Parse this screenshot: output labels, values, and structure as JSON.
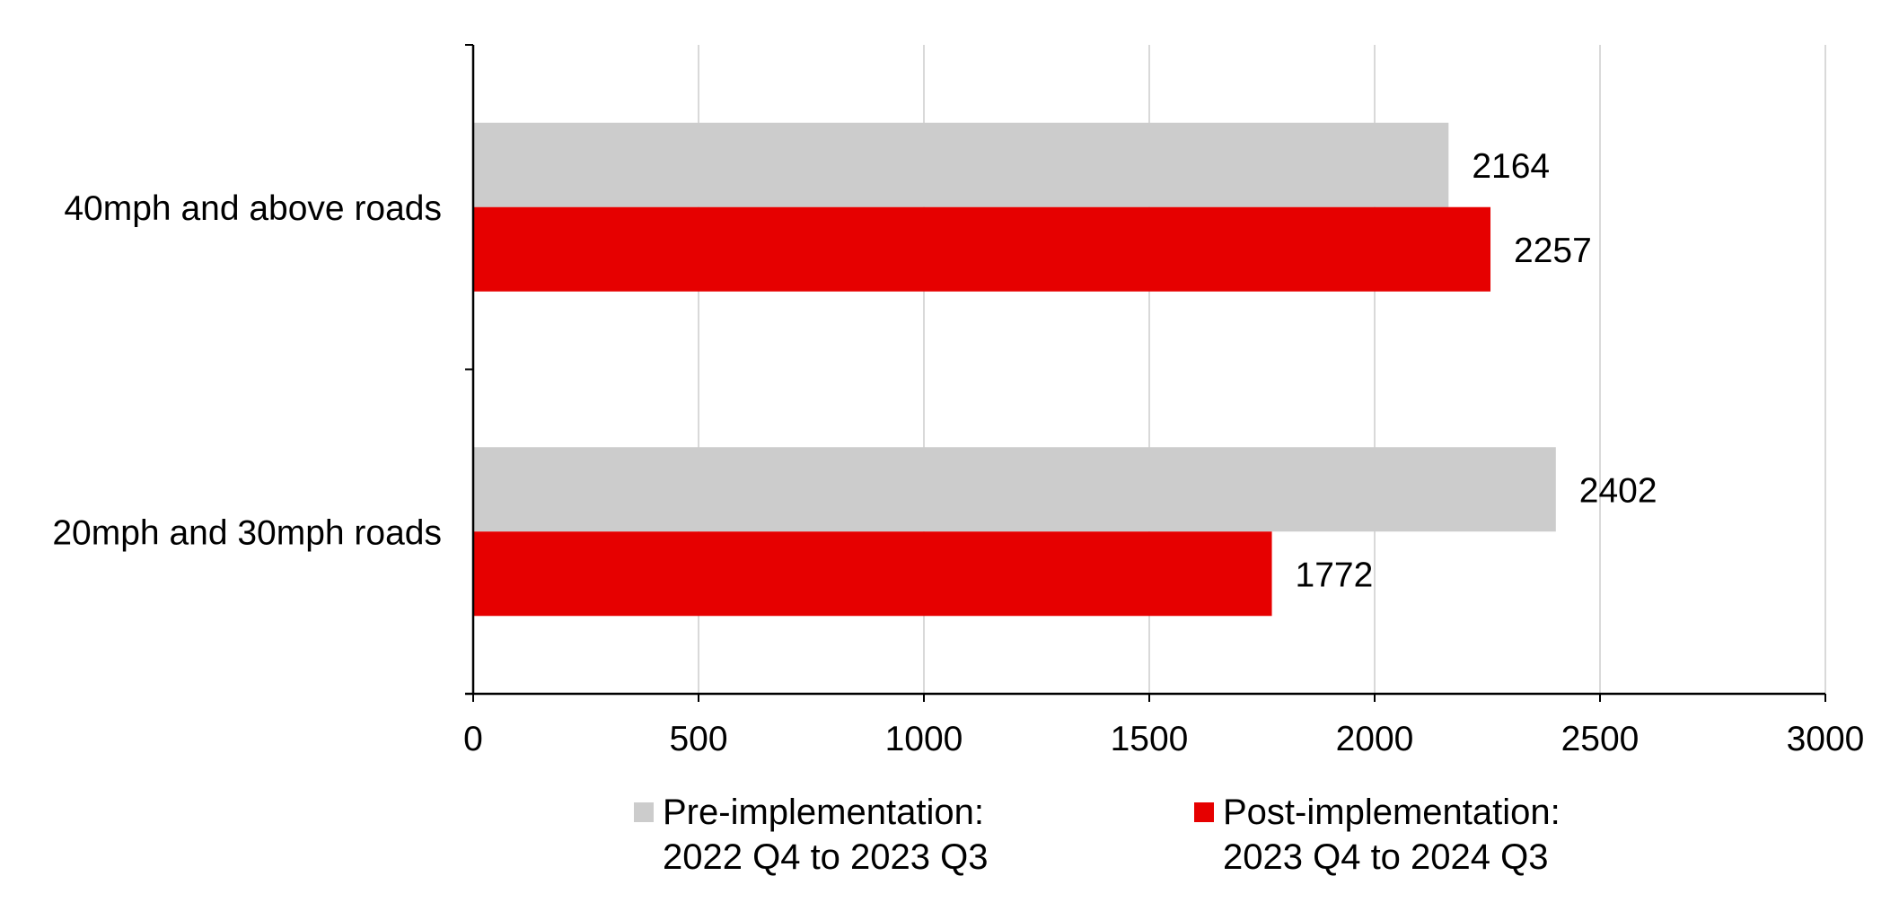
{
  "chart_data": {
    "type": "bar",
    "orientation": "horizontal",
    "title": "",
    "xlabel": "",
    "ylabel": "",
    "categories": [
      "40mph and above roads",
      "20mph and 30mph roads"
    ],
    "series": [
      {
        "name": "Pre-implementation: 2022 Q4 to 2023 Q3",
        "color": "#cccccc",
        "values": [
          2164,
          2402
        ],
        "labels": [
          "2164",
          "2402"
        ]
      },
      {
        "name": "Post-implementation: 2023 Q4 to 2024 Q3",
        "color": "#e60000",
        "values": [
          2257,
          1772
        ],
        "labels": [
          "2257",
          "1772"
        ]
      }
    ],
    "xlim": [
      0,
      3000
    ],
    "xticks": [
      0,
      500,
      1000,
      1500,
      2000,
      2500,
      3000
    ],
    "xtick_labels": [
      "0",
      "500",
      "1000",
      "1500",
      "2000",
      "2500",
      "3000"
    ],
    "grid": "vertical",
    "legend_position": "bottom"
  },
  "legend": {
    "pre_line1": "Pre-implementation:",
    "pre_line2": "2022 Q4 to 2023 Q3",
    "post_line1": "Post-implementation:",
    "post_line2": "2023 Q4 to 2024 Q3"
  }
}
